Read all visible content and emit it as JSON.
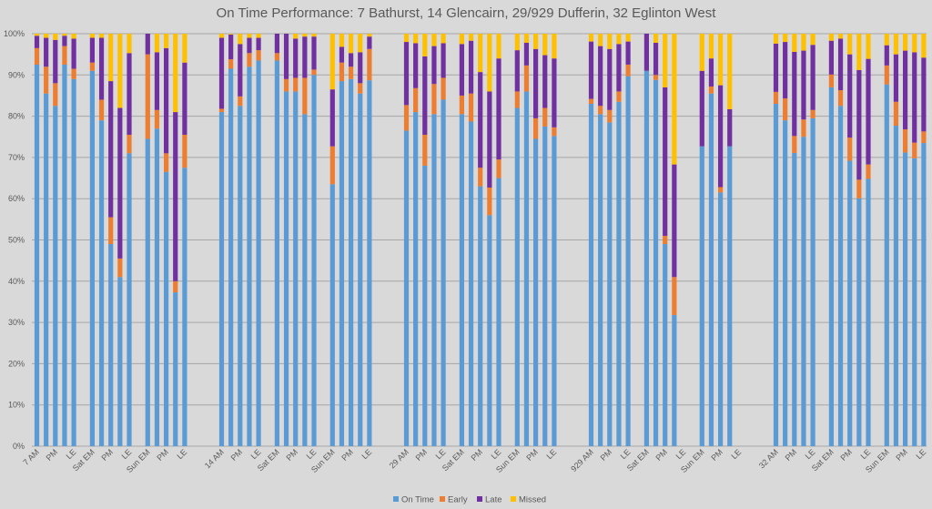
{
  "chart_data": {
    "type": "bar",
    "stacked": true,
    "title": "On Time Performance: 7 Bathurst, 14 Glencairn, 29/929 Dufferin, 32 Eglinton West",
    "xlabel": "",
    "ylabel": "",
    "ylim": [
      0,
      100
    ],
    "y_ticks": [
      "0%",
      "10%",
      "20%",
      "30%",
      "40%",
      "50%",
      "60%",
      "70%",
      "80%",
      "90%",
      "100%"
    ],
    "grid": true,
    "legend_position": "bottom",
    "colors": {
      "On Time": "#5b9bd5",
      "Early": "#ed7d31",
      "Late": "#7030a0",
      "Missed": "#ffc000"
    },
    "legend": [
      "On Time",
      "Early",
      "Late",
      "Missed"
    ],
    "groups": [
      {
        "route": "7",
        "periods": [
          {
            "label_prefix": "7",
            "tick_labels": [
              "7 AM",
              "",
              "PM",
              "",
              "LE"
            ],
            "bars": [
              {
                "on_time": 92.5,
                "early": 4.0,
                "late": 3.0,
                "missed": 0.5
              },
              {
                "on_time": 85.5,
                "early": 6.5,
                "late": 7.0,
                "missed": 1.0
              },
              {
                "on_time": 82.5,
                "early": 5.5,
                "late": 10.5,
                "missed": 1.5
              },
              {
                "on_time": 92.5,
                "early": 4.5,
                "late": 2.5,
                "missed": 0.5
              },
              {
                "on_time": 89.0,
                "early": 2.5,
                "late": 7.3,
                "missed": 1.2
              }
            ]
          },
          {
            "tick_labels": [
              "Sat EM",
              "",
              "PM",
              "",
              "LE"
            ],
            "bars": [
              {
                "on_time": 91.0,
                "early": 2.0,
                "late": 6.0,
                "missed": 1.0
              },
              {
                "on_time": 79.0,
                "early": 5.0,
                "late": 15.0,
                "missed": 1.0
              },
              {
                "on_time": 49.0,
                "early": 6.5,
                "late": 33.0,
                "missed": 11.5
              },
              {
                "on_time": 41.0,
                "early": 4.5,
                "late": 36.5,
                "missed": 18.0
              },
              {
                "on_time": 71.0,
                "early": 4.5,
                "late": 19.8,
                "missed": 4.7
              }
            ]
          },
          {
            "tick_labels": [
              "Sun EM",
              "",
              "PM",
              "",
              "LE"
            ],
            "bars": [
              {
                "on_time": 74.5,
                "early": 20.5,
                "late": 5.0,
                "missed": 0.0
              },
              {
                "on_time": 77.0,
                "early": 4.5,
                "late": 14.0,
                "missed": 4.5
              },
              {
                "on_time": 66.5,
                "early": 4.5,
                "late": 25.5,
                "missed": 3.5
              },
              {
                "on_time": 37.3,
                "early": 2.7,
                "late": 41.0,
                "missed": 19.0
              },
              {
                "on_time": 67.5,
                "early": 8.0,
                "late": 17.5,
                "missed": 7.0
              }
            ]
          }
        ]
      },
      {
        "route": "14",
        "periods": [
          {
            "tick_labels": [
              "14 AM",
              "",
              "PM",
              "",
              "LE"
            ],
            "bars": [
              {
                "on_time": 81.0,
                "early": 0.8,
                "late": 17.2,
                "missed": 1.0
              },
              {
                "on_time": 91.5,
                "early": 2.3,
                "late": 6.0,
                "missed": 0.2
              },
              {
                "on_time": 82.5,
                "early": 2.3,
                "late": 12.7,
                "missed": 2.5
              },
              {
                "on_time": 92.0,
                "early": 3.3,
                "late": 3.7,
                "missed": 1.0
              },
              {
                "on_time": 93.5,
                "early": 2.5,
                "late": 3.0,
                "missed": 1.0
              }
            ]
          },
          {
            "tick_labels": [
              "Sat EM",
              "",
              "PM",
              "",
              "LE"
            ],
            "bars": [
              {
                "on_time": 93.5,
                "early": 1.8,
                "late": 4.7,
                "missed": 0.0
              },
              {
                "on_time": 86.0,
                "early": 3.0,
                "late": 11.0,
                "missed": 0.0
              },
              {
                "on_time": 86.0,
                "early": 3.3,
                "late": 9.5,
                "missed": 1.2
              },
              {
                "on_time": 80.5,
                "early": 8.8,
                "late": 10.0,
                "missed": 0.7
              },
              {
                "on_time": 90.0,
                "early": 1.3,
                "late": 8.0,
                "missed": 0.7
              }
            ]
          },
          {
            "tick_labels": [
              "Sun EM",
              "",
              "PM",
              "",
              "LE"
            ],
            "bars": [
              {
                "on_time": 63.5,
                "early": 9.2,
                "late": 13.8,
                "missed": 13.5
              },
              {
                "on_time": 88.5,
                "early": 4.5,
                "late": 3.8,
                "missed": 3.2
              },
              {
                "on_time": 89.0,
                "early": 3.0,
                "late": 3.3,
                "missed": 4.7
              },
              {
                "on_time": 85.5,
                "early": 2.5,
                "late": 7.5,
                "missed": 4.5
              },
              {
                "on_time": 88.7,
                "early": 7.6,
                "late": 3.0,
                "missed": 0.7
              }
            ]
          }
        ]
      },
      {
        "route": "29",
        "periods": [
          {
            "tick_labels": [
              "29 AM",
              "",
              "PM",
              "",
              "LE"
            ],
            "bars": [
              {
                "on_time": 76.5,
                "early": 6.2,
                "late": 15.3,
                "missed": 2.0
              },
              {
                "on_time": 81.0,
                "early": 5.8,
                "late": 10.9,
                "missed": 2.3
              },
              {
                "on_time": 68.0,
                "early": 7.5,
                "late": 19.0,
                "missed": 5.5
              },
              {
                "on_time": 80.5,
                "early": 7.3,
                "late": 9.2,
                "missed": 3.0
              },
              {
                "on_time": 84.0,
                "early": 5.3,
                "late": 8.4,
                "missed": 2.3
              }
            ]
          },
          {
            "tick_labels": [
              "Sat EM",
              "",
              "PM",
              "",
              "LE"
            ],
            "bars": [
              {
                "on_time": 80.5,
                "early": 4.5,
                "late": 12.5,
                "missed": 2.5
              },
              {
                "on_time": 78.7,
                "early": 6.8,
                "late": 12.8,
                "missed": 1.7
              },
              {
                "on_time": 63.0,
                "early": 4.5,
                "late": 23.2,
                "missed": 9.3
              },
              {
                "on_time": 56.0,
                "early": 6.7,
                "late": 23.3,
                "missed": 14.0
              },
              {
                "on_time": 65.0,
                "early": 4.5,
                "late": 24.5,
                "missed": 6.0
              }
            ]
          },
          {
            "tick_labels": [
              "Sun EM",
              "",
              "PM",
              "",
              "LE"
            ],
            "bars": [
              {
                "on_time": 82.0,
                "early": 4.0,
                "late": 10.0,
                "missed": 4.0
              },
              {
                "on_time": 86.0,
                "early": 6.3,
                "late": 5.5,
                "missed": 2.2
              },
              {
                "on_time": 74.5,
                "early": 5.0,
                "late": 16.8,
                "missed": 3.7
              },
              {
                "on_time": 77.5,
                "early": 4.5,
                "late": 12.8,
                "missed": 5.2
              },
              {
                "on_time": 75.2,
                "early": 2.1,
                "late": 16.7,
                "missed": 6.0
              }
            ]
          }
        ]
      },
      {
        "route": "929",
        "periods": [
          {
            "tick_labels": [
              "929 AM",
              "",
              "PM",
              "",
              "LE"
            ],
            "bars": [
              {
                "on_time": 83.0,
                "early": 1.2,
                "late": 13.9,
                "missed": 1.9
              },
              {
                "on_time": 80.5,
                "early": 2.0,
                "late": 14.5,
                "missed": 3.0
              },
              {
                "on_time": 78.5,
                "early": 3.0,
                "late": 14.8,
                "missed": 3.7
              },
              {
                "on_time": 83.5,
                "early": 2.5,
                "late": 11.5,
                "missed": 2.5
              },
              {
                "on_time": 89.7,
                "early": 2.8,
                "late": 5.6,
                "missed": 1.9
              }
            ]
          },
          {
            "tick_labels": [
              "Sat EM",
              "",
              "PM",
              "",
              "LE"
            ],
            "bars": [
              {
                "on_time": 91.0,
                "early": 0.0,
                "late": 9.0,
                "missed": 0.0
              },
              {
                "on_time": 88.8,
                "early": 1.2,
                "late": 7.8,
                "missed": 2.2
              },
              {
                "on_time": 49.0,
                "early": 2.0,
                "late": 36.0,
                "missed": 13.0
              },
              {
                "on_time": 31.8,
                "early": 9.2,
                "late": 27.3,
                "missed": 31.7
              },
              null
            ]
          },
          {
            "tick_labels": [
              "Sun EM",
              "",
              "PM",
              "",
              "LE"
            ],
            "bars": [
              {
                "on_time": 72.7,
                "early": 0.0,
                "late": 18.3,
                "missed": 9.0
              },
              {
                "on_time": 85.5,
                "early": 1.7,
                "late": 6.8,
                "missed": 6.0
              },
              {
                "on_time": 61.5,
                "early": 1.3,
                "late": 24.7,
                "missed": 12.5
              },
              {
                "on_time": 72.7,
                "early": 0.0,
                "late": 9.0,
                "missed": 18.3
              },
              null
            ]
          }
        ]
      },
      {
        "route": "32",
        "periods": [
          {
            "tick_labels": [
              "32 AM",
              "",
              "PM",
              "",
              "LE"
            ],
            "bars": [
              {
                "on_time": 83.0,
                "early": 2.9,
                "late": 11.7,
                "missed": 2.4
              },
              {
                "on_time": 79.0,
                "early": 5.3,
                "late": 13.7,
                "missed": 2.0
              },
              {
                "on_time": 71.1,
                "early": 4.1,
                "late": 20.4,
                "missed": 4.4
              },
              {
                "on_time": 75.0,
                "early": 4.2,
                "late": 16.7,
                "missed": 4.1
              },
              {
                "on_time": 79.5,
                "early": 2.0,
                "late": 15.8,
                "missed": 2.7
              }
            ]
          },
          {
            "tick_labels": [
              "Sat EM",
              "",
              "PM",
              "",
              "LE"
            ],
            "bars": [
              {
                "on_time": 87.0,
                "early": 3.1,
                "late": 8.2,
                "missed": 1.7
              },
              {
                "on_time": 82.5,
                "early": 3.8,
                "late": 12.5,
                "missed": 1.2
              },
              {
                "on_time": 69.2,
                "early": 5.6,
                "late": 20.2,
                "missed": 5.0
              },
              {
                "on_time": 60.1,
                "early": 4.5,
                "late": 26.6,
                "missed": 8.8
              },
              {
                "on_time": 64.8,
                "early": 3.5,
                "late": 25.6,
                "missed": 6.1
              }
            ]
          },
          {
            "tick_labels": [
              "Sun EM",
              "",
              "PM",
              "",
              "LE"
            ],
            "bars": [
              {
                "on_time": 87.7,
                "early": 4.6,
                "late": 4.9,
                "missed": 2.8
              },
              {
                "on_time": 77.7,
                "early": 5.8,
                "late": 11.5,
                "missed": 5.0
              },
              {
                "on_time": 71.2,
                "early": 5.6,
                "late": 19.1,
                "missed": 4.1
              },
              {
                "on_time": 69.8,
                "early": 3.8,
                "late": 21.9,
                "missed": 4.5
              },
              {
                "on_time": 73.5,
                "early": 2.8,
                "late": 17.9,
                "missed": 5.8
              }
            ]
          }
        ]
      }
    ]
  }
}
